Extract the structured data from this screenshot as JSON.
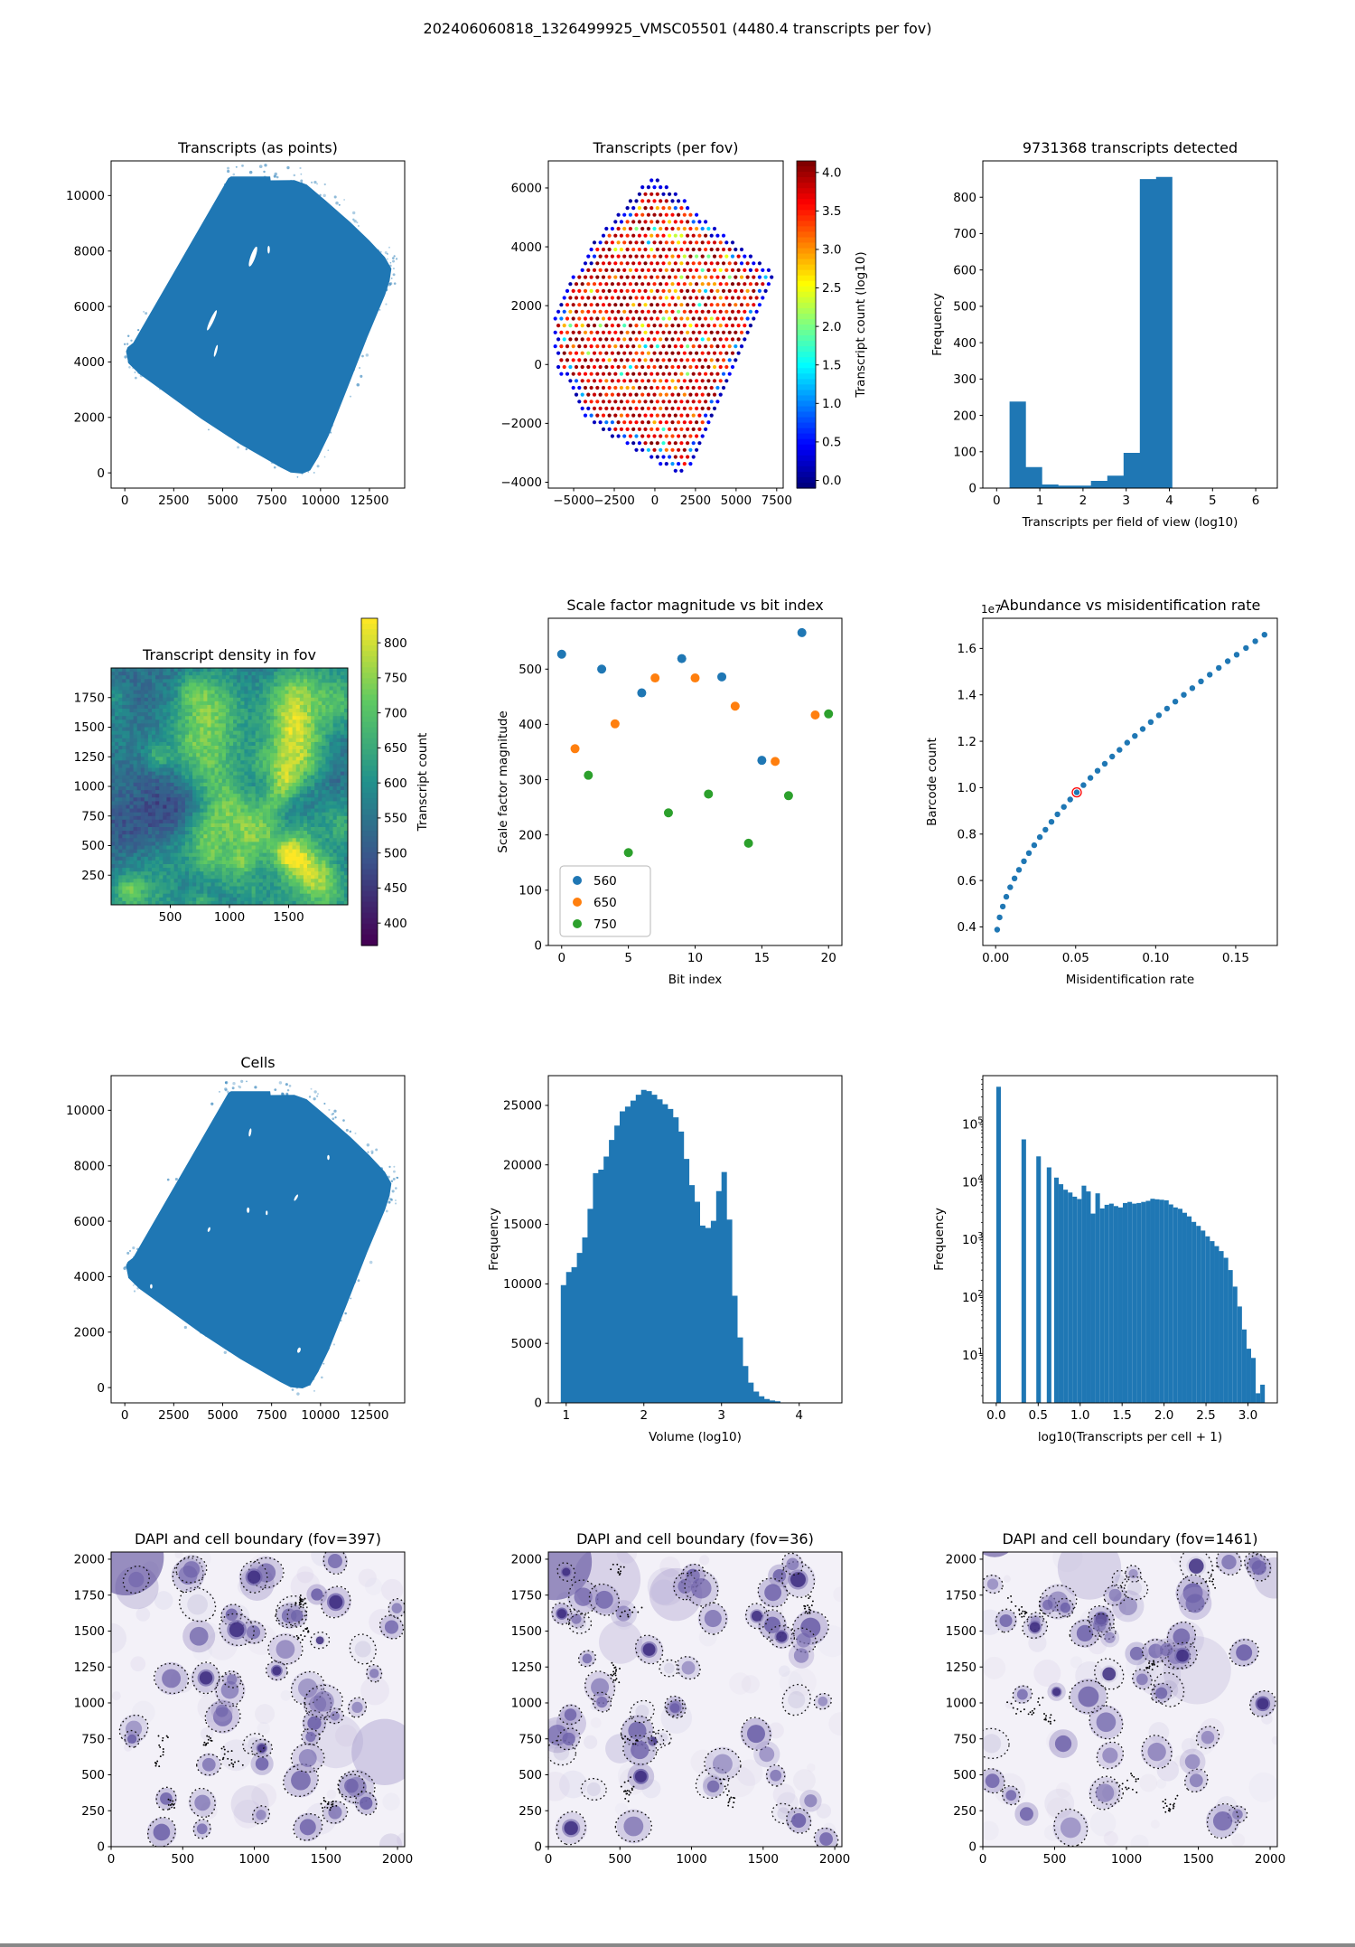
{
  "figure": {
    "title": "202406060818_1326499925_VMSC05501 (4480.4 transcripts per fov)"
  },
  "colors": {
    "series_blue": "#1f77b4",
    "series_orange": "#ff7f0e",
    "series_green": "#2ca02c",
    "highlight_red": "#ff0000",
    "dapi_bg": "#f3f1f8"
  },
  "chart_data": [
    {
      "id": "transcripts-points",
      "render": "tissue",
      "type": "scatter",
      "title": "Transcripts (as points)",
      "xlim": [
        -700,
        14300
      ],
      "ylim": [
        -550,
        11250
      ],
      "xticks": [
        0,
        2500,
        5000,
        7500,
        10000,
        12500
      ],
      "yticks": [
        0,
        2000,
        4000,
        6000,
        8000,
        10000
      ],
      "outline": [
        [
          60,
          4380
        ],
        [
          140,
          4530
        ],
        [
          430,
          4690
        ],
        [
          5280,
          10620
        ],
        [
          5420,
          10690
        ],
        [
          7430,
          10690
        ],
        [
          7450,
          10550
        ],
        [
          8660,
          10560
        ],
        [
          9290,
          10400
        ],
        [
          10260,
          9820
        ],
        [
          11510,
          9050
        ],
        [
          12490,
          8380
        ],
        [
          13290,
          7780
        ],
        [
          13620,
          7360
        ],
        [
          13530,
          6920
        ],
        [
          13300,
          6420
        ],
        [
          12400,
          4900
        ],
        [
          11400,
          3100
        ],
        [
          10420,
          1350
        ],
        [
          9880,
          560
        ],
        [
          9470,
          90
        ],
        [
          9080,
          -30
        ],
        [
          8470,
          10
        ],
        [
          7950,
          200
        ],
        [
          5900,
          1030
        ],
        [
          3900,
          1950
        ],
        [
          1950,
          2950
        ],
        [
          750,
          3560
        ],
        [
          180,
          3950
        ]
      ],
      "holes": [
        [
          6550,
          7800,
          120,
          380,
          20
        ],
        [
          4450,
          5500,
          90,
          400,
          25
        ],
        [
          4650,
          4400,
          60,
          220,
          15
        ],
        [
          7350,
          8050,
          60,
          140,
          0
        ],
        [
          2050,
          7950,
          50,
          110,
          30
        ]
      ],
      "seed": 11
    },
    {
      "id": "transcripts-per-fov",
      "render": "fovdots",
      "type": "scatter",
      "title": "Transcripts (per fov)",
      "xlim": [
        -6560,
        7900
      ],
      "ylim": [
        -4200,
        6920
      ],
      "xticks": [
        -5000,
        -2500,
        0,
        2500,
        5000,
        7500
      ],
      "yticks": [
        -4000,
        -2000,
        0,
        2000,
        4000,
        6000
      ],
      "outline": [
        [
          -170,
          6460
        ],
        [
          7510,
          3020
        ],
        [
          1780,
          -3880
        ],
        [
          -4000,
          -2050
        ],
        [
          -6110,
          0
        ],
        [
          -6280,
          1640
        ],
        [
          -4060,
          4000
        ]
      ],
      "pitch_x": 370,
      "pitch_y": 235,
      "colorbar": {
        "label": "Transcript count (log10)",
        "min": -0.1,
        "max": 4.15,
        "ticks": [
          0,
          0.5,
          1,
          1.5,
          2,
          2.5,
          3,
          3.5,
          4
        ],
        "ticklabels": [
          "0.0",
          "0.5",
          "1.0",
          "1.5",
          "2.0",
          "2.5",
          "3.0",
          "3.5",
          "4.0"
        ]
      },
      "seed": 21
    },
    {
      "id": "transcripts-hist",
      "render": "hist",
      "type": "bar",
      "title": "9731368 transcripts detected",
      "xlabel": "Transcripts per field of view (log10)",
      "ylabel": "Frequency",
      "xlim": [
        -0.32,
        6.5
      ],
      "ylim": [
        0,
        900
      ],
      "xticks": [
        0,
        1,
        2,
        3,
        4,
        5,
        6
      ],
      "yticks": [
        0,
        100,
        200,
        300,
        400,
        500,
        600,
        700,
        800
      ],
      "bin_start": 0.3,
      "bin_width": 0.377,
      "values": [
        238,
        58,
        10,
        7,
        7,
        20,
        34,
        97,
        850,
        856
      ],
      "yoff": 46
    },
    {
      "id": "transcript-density",
      "render": "heatmap",
      "type": "heatmap",
      "title": "Transcript density in fov",
      "xlim": [
        0,
        2000
      ],
      "ylim": [
        0,
        2000
      ],
      "xticks": [
        500,
        1000,
        1500
      ],
      "yticks": [
        250,
        500,
        750,
        1000,
        1250,
        1500,
        1750
      ],
      "grid": 64,
      "vmin": 392,
      "vmax": 818,
      "colorbar": {
        "label": "Transcript count",
        "min": 368,
        "max": 835,
        "ticks": [
          400,
          450,
          500,
          550,
          600,
          650,
          700,
          750,
          800
        ],
        "ticklabels": [
          "400",
          "450",
          "500",
          "550",
          "600",
          "650",
          "700",
          "750",
          "800"
        ]
      },
      "seed": 4
    },
    {
      "id": "scale-factor",
      "render": "groupscatter",
      "type": "scatter",
      "title": "Scale factor magnitude vs bit index",
      "xlabel": "Bit index",
      "ylabel": "Scale factor magnitude",
      "xlim": [
        -1,
        21
      ],
      "ylim": [
        0,
        592
      ],
      "xticks": [
        0,
        5,
        10,
        15,
        20
      ],
      "yticks": [
        0,
        100,
        200,
        300,
        400,
        500
      ],
      "series": [
        {
          "name": "560",
          "color": "#1f77b4",
          "points": [
            [
              0,
              527
            ],
            [
              3,
              500
            ],
            [
              6,
              457
            ],
            [
              9,
              519
            ],
            [
              12,
              486
            ],
            [
              15,
              335
            ],
            [
              18,
              566
            ]
          ]
        },
        {
          "name": "650",
          "color": "#ff7f0e",
          "points": [
            [
              1,
              356
            ],
            [
              4,
              401
            ],
            [
              7,
              484
            ],
            [
              10,
              484
            ],
            [
              13,
              433
            ],
            [
              16,
              333
            ],
            [
              19,
              417
            ]
          ]
        },
        {
          "name": "750",
          "color": "#2ca02c",
          "points": [
            [
              2,
              308
            ],
            [
              5,
              168
            ],
            [
              8,
              240
            ],
            [
              11,
              274
            ],
            [
              14,
              185
            ],
            [
              17,
              271
            ],
            [
              20,
              419
            ]
          ]
        }
      ],
      "yoff": 46
    },
    {
      "id": "abundance",
      "render": "curvescatter",
      "type": "scatter",
      "title": "Abundance vs misidentification rate",
      "xlabel": "Misidentification rate",
      "ylabel": "Barcode count",
      "offset_label": "1e7",
      "xlim": [
        -0.008,
        0.176
      ],
      "ylim": [
        0.32,
        1.73
      ],
      "xticks": [
        0,
        0.05,
        0.1,
        0.15
      ],
      "xticklabels": [
        "0.00",
        "0.05",
        "0.10",
        "0.15"
      ],
      "yticks": [
        0.4,
        0.6,
        0.8,
        1.0,
        1.2,
        1.4,
        1.6
      ],
      "yticklabels": [
        "0.4",
        "0.6",
        "0.8",
        "1.0",
        "1.2",
        "1.4",
        "1.6"
      ],
      "points": [
        [
          0.001,
          0.388
        ],
        [
          0.0025,
          0.441
        ],
        [
          0.0045,
          0.488
        ],
        [
          0.0067,
          0.53
        ],
        [
          0.0091,
          0.571
        ],
        [
          0.0118,
          0.609
        ],
        [
          0.0146,
          0.646
        ],
        [
          0.0177,
          0.683
        ],
        [
          0.0208,
          0.718
        ],
        [
          0.0241,
          0.752
        ],
        [
          0.0276,
          0.787
        ],
        [
          0.0311,
          0.819
        ],
        [
          0.0349,
          0.853
        ],
        [
          0.0386,
          0.885
        ],
        [
          0.0426,
          0.917
        ],
        [
          0.0466,
          0.949
        ],
        [
          0.0507,
          0.98
        ],
        [
          0.0549,
          1.011
        ],
        [
          0.0592,
          1.042
        ],
        [
          0.0637,
          1.073
        ],
        [
          0.0682,
          1.103
        ],
        [
          0.0728,
          1.134
        ],
        [
          0.0774,
          1.163
        ],
        [
          0.0822,
          1.194
        ],
        [
          0.087,
          1.223
        ],
        [
          0.0919,
          1.253
        ],
        [
          0.0969,
          1.283
        ],
        [
          0.102,
          1.312
        ],
        [
          0.1071,
          1.341
        ],
        [
          0.1123,
          1.371
        ],
        [
          0.1176,
          1.4
        ],
        [
          0.1229,
          1.429
        ],
        [
          0.1283,
          1.458
        ],
        [
          0.1338,
          1.487
        ],
        [
          0.1394,
          1.516
        ],
        [
          0.145,
          1.545
        ],
        [
          0.1506,
          1.573
        ],
        [
          0.1564,
          1.602
        ],
        [
          0.1622,
          1.631
        ],
        [
          0.168,
          1.659
        ]
      ],
      "highlight_index": 16,
      "yoff": 52
    },
    {
      "id": "cells",
      "render": "tissue",
      "type": "scatter",
      "title": "Cells",
      "xlim": [
        -700,
        14300
      ],
      "ylim": [
        -550,
        11250
      ],
      "xticks": [
        0,
        2500,
        5000,
        7500,
        10000,
        12500
      ],
      "yticks": [
        0,
        2000,
        4000,
        6000,
        8000,
        10000
      ],
      "outline": [
        [
          60,
          4380
        ],
        [
          140,
          4530
        ],
        [
          430,
          4690
        ],
        [
          5280,
          10620
        ],
        [
          5420,
          10690
        ],
        [
          7430,
          10690
        ],
        [
          7450,
          10550
        ],
        [
          8660,
          10560
        ],
        [
          9290,
          10400
        ],
        [
          10260,
          9820
        ],
        [
          11510,
          9050
        ],
        [
          12490,
          8380
        ],
        [
          13290,
          7780
        ],
        [
          13620,
          7360
        ],
        [
          13530,
          6920
        ],
        [
          13300,
          6420
        ],
        [
          12400,
          4900
        ],
        [
          11400,
          3100
        ],
        [
          10420,
          1350
        ],
        [
          9880,
          560
        ],
        [
          9470,
          90
        ],
        [
          9080,
          -30
        ],
        [
          8470,
          10
        ],
        [
          7950,
          200
        ],
        [
          5900,
          1030
        ],
        [
          3900,
          1950
        ],
        [
          1950,
          2950
        ],
        [
          750,
          3560
        ],
        [
          180,
          3950
        ]
      ],
      "holes": [
        [
          6300,
          6400,
          70,
          100,
          0
        ],
        [
          7250,
          6300,
          50,
          80,
          0
        ],
        [
          4300,
          5700,
          60,
          90,
          20
        ],
        [
          8750,
          6850,
          60,
          130,
          30
        ],
        [
          1350,
          3650,
          60,
          80,
          0
        ],
        [
          8900,
          1350,
          80,
          100,
          20
        ],
        [
          10400,
          8300,
          60,
          90,
          0
        ],
        [
          6400,
          9200,
          60,
          150,
          10
        ]
      ],
      "seed": 12
    },
    {
      "id": "volume-hist",
      "render": "hist",
      "type": "bar",
      "title": "",
      "xlabel": "Volume (log10)",
      "ylabel": "Frequency",
      "xlim": [
        0.77,
        4.55
      ],
      "ylim": [
        0,
        27500
      ],
      "xticks": [
        1,
        2,
        3,
        4
      ],
      "yticks": [
        0,
        5000,
        10000,
        15000,
        20000,
        25000
      ],
      "bin_start": 0.93,
      "bin_width": 0.069,
      "values": [
        9900,
        11000,
        11400,
        12600,
        13900,
        16300,
        19300,
        19600,
        20700,
        22100,
        23300,
        24500,
        24900,
        25400,
        25900,
        26300,
        26200,
        25900,
        25500,
        25100,
        24700,
        24000,
        22800,
        20500,
        18300,
        16900,
        14900,
        14700,
        15300,
        17800,
        19400,
        15400,
        9000,
        5500,
        3100,
        1700,
        950,
        550,
        330,
        200,
        130
      ],
      "yoff": 56
    },
    {
      "id": "transcripts-per-cell",
      "render": "loghist",
      "type": "bar",
      "title": "",
      "xlabel": "log10(Transcripts per cell + 1)",
      "ylabel": "Frequency",
      "xlim": [
        -0.16,
        3.35
      ],
      "ylim": [
        1.5,
        700000
      ],
      "xticks": [
        0,
        0.5,
        1,
        1.5,
        2,
        2.5,
        3
      ],
      "xticklabels": [
        "0.0",
        "0.5",
        "1.0",
        "1.5",
        "2.0",
        "2.5",
        "3.0"
      ],
      "ytickexp": [
        1,
        2,
        3,
        4,
        5
      ],
      "bar_width": 0.0546,
      "isolated": [
        [
          0.0,
          450000
        ],
        [
          0.301,
          55000
        ],
        [
          0.477,
          28000
        ],
        [
          0.602,
          18000
        ]
      ],
      "cont_start": 0.69,
      "cont_values": [
        12000,
        9200,
        7400,
        6600,
        5600,
        5100,
        8700,
        6900,
        2850,
        6400,
        3500,
        4050,
        4250,
        3850,
        3650,
        4350,
        4550,
        4250,
        4350,
        4550,
        4750,
        5150,
        5050,
        4950,
        4850,
        4100,
        3650,
        3450,
        2950,
        2550,
        2050,
        1750,
        1450,
        1150,
        950,
        780,
        640,
        490,
        300,
        155,
        70,
        28,
        13,
        9,
        2.2,
        3.1
      ],
      "yoff": 44
    },
    {
      "id": "dapi-397",
      "render": "dapi",
      "type": "heatmap",
      "title": "DAPI and cell boundary (fov=397)",
      "xlim": [
        0,
        2050
      ],
      "ylim": [
        0,
        2050
      ],
      "xticks": [
        0,
        500,
        1000,
        1500,
        2000
      ],
      "yticks": [
        0,
        250,
        500,
        750,
        1000,
        1250,
        1500,
        1750,
        2000
      ],
      "seed": 397
    },
    {
      "id": "dapi-36",
      "render": "dapi",
      "type": "heatmap",
      "title": "DAPI and cell boundary (fov=36)",
      "xlim": [
        0,
        2050
      ],
      "ylim": [
        0,
        2050
      ],
      "xticks": [
        0,
        500,
        1000,
        1500,
        2000
      ],
      "yticks": [
        0,
        250,
        500,
        750,
        1000,
        1250,
        1500,
        1750,
        2000
      ],
      "seed": 36
    },
    {
      "id": "dapi-1461",
      "render": "dapi",
      "type": "heatmap",
      "title": "DAPI and cell boundary (fov=1461)",
      "xlim": [
        0,
        2050
      ],
      "ylim": [
        0,
        2050
      ],
      "xticks": [
        0,
        500,
        1000,
        1500,
        2000
      ],
      "yticks": [
        0,
        250,
        500,
        750,
        1000,
        1250,
        1500,
        1750,
        2000
      ],
      "seed": 1461
    }
  ]
}
